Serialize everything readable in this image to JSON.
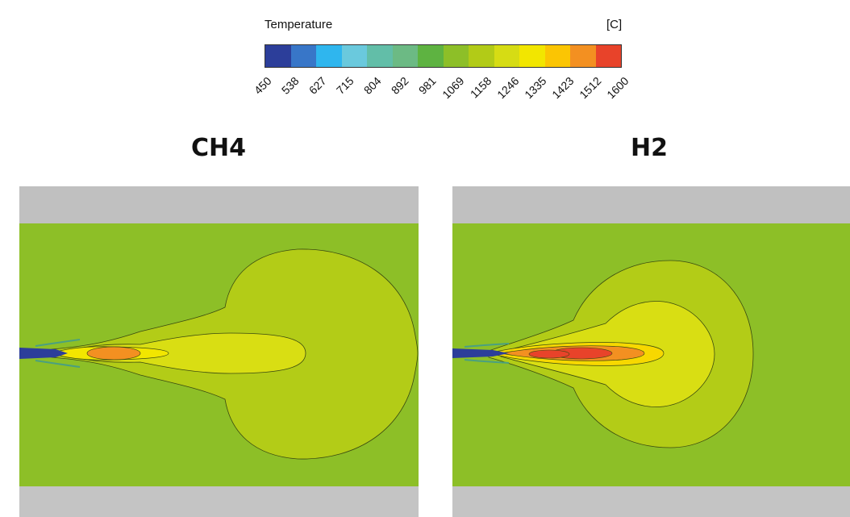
{
  "legend": {
    "title": "Temperature",
    "unit": "[C]",
    "ticks": [
      "450",
      "538",
      "627",
      "715",
      "804",
      "892",
      "981",
      "1069",
      "1158",
      "1246",
      "1335",
      "1423",
      "1512",
      "1600"
    ],
    "colors": [
      "#2c3e9a",
      "#3876c8",
      "#2fb6ee",
      "#6ac9dd",
      "#62bea8",
      "#6cba84",
      "#5eb341",
      "#8dbf28",
      "#b2cb17",
      "#d6dc14",
      "#f2e600",
      "#fbc503",
      "#f39021",
      "#e8432a"
    ]
  },
  "panels": [
    {
      "title": "CH4"
    },
    {
      "title": "H2"
    }
  ],
  "palette": {
    "wall": "#c0c0c0",
    "background_field": "#8dbf27"
  }
}
